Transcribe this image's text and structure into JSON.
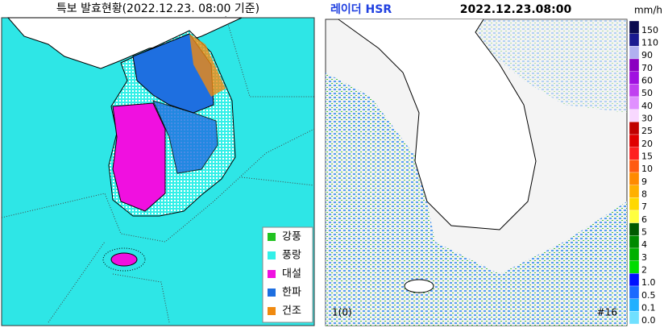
{
  "warning_map": {
    "title": "특보 발효현황(2022.12.23. 08:00 기준)",
    "legend": [
      {
        "label": "강풍",
        "color": "#22c322"
      },
      {
        "label": "풍랑",
        "color": "#33f0e8"
      },
      {
        "label": "대설",
        "color": "#f010e0"
      },
      {
        "label": "한파",
        "color": "#1e6fe0"
      },
      {
        "label": "건조",
        "color": "#f08a10"
      }
    ]
  },
  "radar_map": {
    "title": "레이더 HSR",
    "timestamp": "2022.12.23.08:00",
    "unit": "mm/h",
    "scale": [
      {
        "label": "150",
        "color": "#0a0a50"
      },
      {
        "label": "110",
        "color": "#1a1a90"
      },
      {
        "label": "90",
        "color": "#b0b0f0"
      },
      {
        "label": "70",
        "color": "#8a00c0"
      },
      {
        "label": "60",
        "color": "#a010e0"
      },
      {
        "label": "50",
        "color": "#c040f0"
      },
      {
        "label": "40",
        "color": "#e090ff"
      },
      {
        "label": "30",
        "color": "#f8d8ff"
      },
      {
        "label": "25",
        "color": "#c00000"
      },
      {
        "label": "20",
        "color": "#e00000"
      },
      {
        "label": "15",
        "color": "#ff2020"
      },
      {
        "label": "10",
        "color": "#ff5a10"
      },
      {
        "label": "9",
        "color": "#ff8a00"
      },
      {
        "label": "8",
        "color": "#ffb000"
      },
      {
        "label": "7",
        "color": "#ffd800"
      },
      {
        "label": "6",
        "color": "#ffff40"
      },
      {
        "label": "5",
        "color": "#005a00"
      },
      {
        "label": "4",
        "color": "#008a00"
      },
      {
        "label": "3",
        "color": "#00b000"
      },
      {
        "label": "2",
        "color": "#00dc00"
      },
      {
        "label": "1.0",
        "color": "#0010ff"
      },
      {
        "label": "0.5",
        "color": "#1a6aff"
      },
      {
        "label": "0.1",
        "color": "#20b0ff"
      },
      {
        "label": "0.0",
        "color": "#70e0ff"
      }
    ],
    "footer_left": "1(0)",
    "footer_right": "#16"
  }
}
